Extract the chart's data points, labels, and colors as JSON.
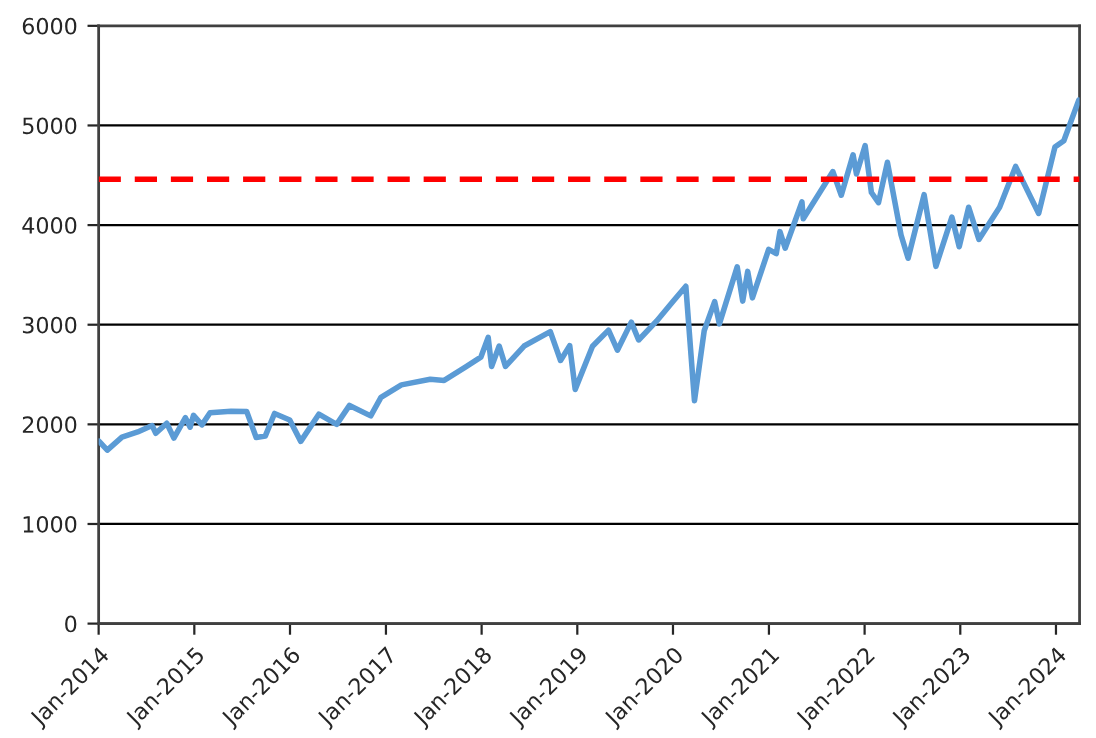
{
  "chart_data": {
    "type": "line",
    "x": [
      "2014-01-02",
      "2014-02-03",
      "2014-03-31",
      "2014-05-30",
      "2014-07-24",
      "2014-08-07",
      "2014-09-18",
      "2014-10-15",
      "2014-11-28",
      "2014-12-16",
      "2014-12-29",
      "2015-01-30",
      "2015-03-02",
      "2015-05-21",
      "2015-07-20",
      "2015-08-25",
      "2015-09-29",
      "2015-11-03",
      "2015-12-31",
      "2016-02-11",
      "2016-04-20",
      "2016-06-27",
      "2016-08-15",
      "2016-11-04",
      "2016-12-13",
      "2017-03-01",
      "2017-06-19",
      "2017-08-11",
      "2017-10-31",
      "2017-12-29",
      "2018-01-26",
      "2018-02-08",
      "2018-03-09",
      "2018-04-02",
      "2018-06-12",
      "2018-09-20",
      "2018-10-29",
      "2018-12-03",
      "2018-12-24",
      "2019-02-28",
      "2019-04-30",
      "2019-06-03",
      "2019-07-26",
      "2019-08-23",
      "2019-10-31",
      "2019-12-31",
      "2020-02-19",
      "2020-03-23",
      "2020-04-29",
      "2020-06-08",
      "2020-06-26",
      "2020-09-02",
      "2020-09-23",
      "2020-10-12",
      "2020-10-30",
      "2020-12-31",
      "2021-01-29",
      "2021-02-12",
      "2021-03-04",
      "2021-05-07",
      "2021-05-12",
      "2021-09-02",
      "2021-10-04",
      "2021-11-18",
      "2021-12-01",
      "2022-01-03",
      "2022-01-27",
      "2022-02-23",
      "2022-03-29",
      "2022-05-20",
      "2022-06-16",
      "2022-08-16",
      "2022-09-30",
      "2022-11-30",
      "2022-12-28",
      "2023-02-02",
      "2023-03-13",
      "2023-05-31",
      "2023-07-31",
      "2023-10-27",
      "2023-12-28",
      "2024-01-31",
      "2024-03-28"
    ],
    "series": [
      {
        "color": "#5b9bd5",
        "values": [
          1832,
          1741,
          1872,
          1924,
          1988,
          1910,
          2011,
          1862,
          2067,
          1972,
          2090,
          1995,
          2117,
          2131,
          2128,
          1868,
          1884,
          2109,
          2044,
          1829,
          2102,
          2000,
          2190,
          2085,
          2271,
          2396,
          2453,
          2441,
          2575,
          2674,
          2873,
          2581,
          2786,
          2582,
          2786,
          2931,
          2641,
          2790,
          2351,
          2784,
          2946,
          2744,
          3026,
          2847,
          3038,
          3231,
          3386,
          2237,
          2939,
          3232,
          3009,
          3580,
          3237,
          3535,
          3270,
          3756,
          3714,
          3934,
          3768,
          4232,
          4063,
          4537,
          4300,
          4705,
          4513,
          4797,
          4327,
          4225,
          4631,
          3901,
          3667,
          4305,
          3586,
          4080,
          3783,
          4179,
          3856,
          4180,
          4589,
          4117,
          4783,
          4846,
          5254
        ]
      }
    ],
    "xlim": [
      "2014-01-01",
      "2024-03-31"
    ],
    "xticks": [
      {
        "value": "2014-01-01",
        "label": "Jan-2014"
      },
      {
        "value": "2015-01-01",
        "label": "Jan-2015"
      },
      {
        "value": "2016-01-01",
        "label": "Jan-2016"
      },
      {
        "value": "2017-01-01",
        "label": "Jan-2017"
      },
      {
        "value": "2018-01-01",
        "label": "Jan-2018"
      },
      {
        "value": "2019-01-01",
        "label": "Jan-2019"
      },
      {
        "value": "2020-01-01",
        "label": "Jan-2020"
      },
      {
        "value": "2021-01-01",
        "label": "Jan-2021"
      },
      {
        "value": "2022-01-01",
        "label": "Jan-2022"
      },
      {
        "value": "2023-01-01",
        "label": "Jan-2023"
      },
      {
        "value": "2024-01-01",
        "label": "Jan-2024"
      }
    ],
    "ylim": [
      0,
      6000
    ],
    "yticks": [
      0,
      1000,
      2000,
      3000,
      4000,
      5000,
      6000
    ],
    "ref_lines": [
      {
        "axis": "y",
        "value": 4460,
        "color": "#ff0000",
        "line_style": "dashed"
      }
    ],
    "grid": "y",
    "line_style": "solid",
    "marker": "none"
  }
}
